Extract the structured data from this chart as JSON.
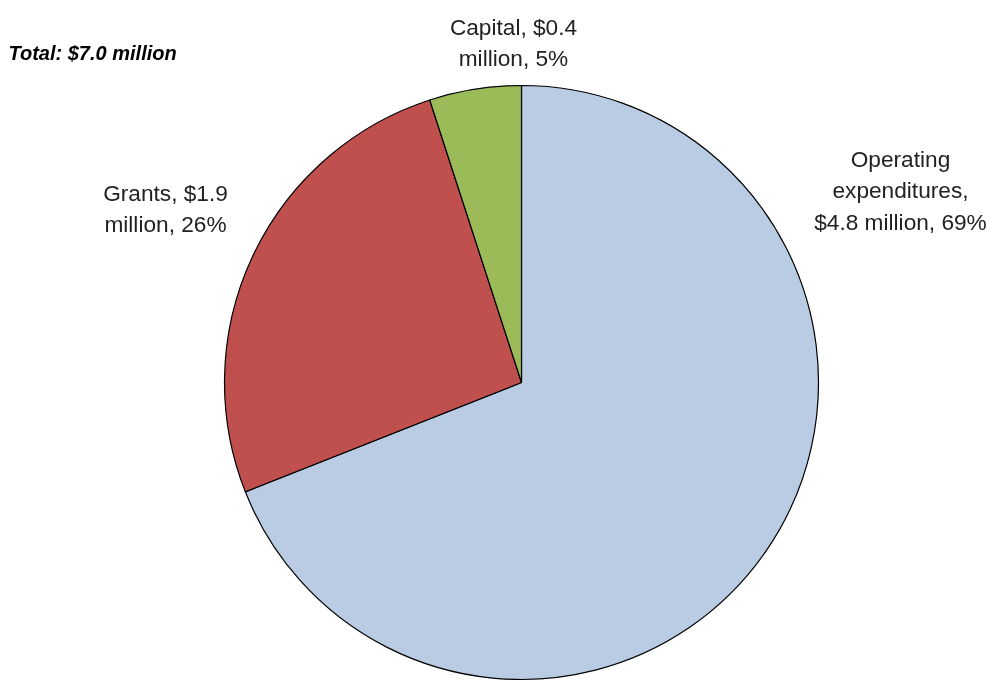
{
  "chart_data": {
    "type": "pie",
    "categories": [
      "Operating expenditures, $4.8 million, 69%",
      "Grants, $1.9 million, 26%",
      "Capital, $0.4 million, 5%"
    ],
    "values": [
      69,
      26,
      5
    ],
    "colors": [
      "#b9cce4",
      "#c0504d",
      "#9bbb59"
    ],
    "annotations": [
      "Total: $7.0 million"
    ]
  }
}
